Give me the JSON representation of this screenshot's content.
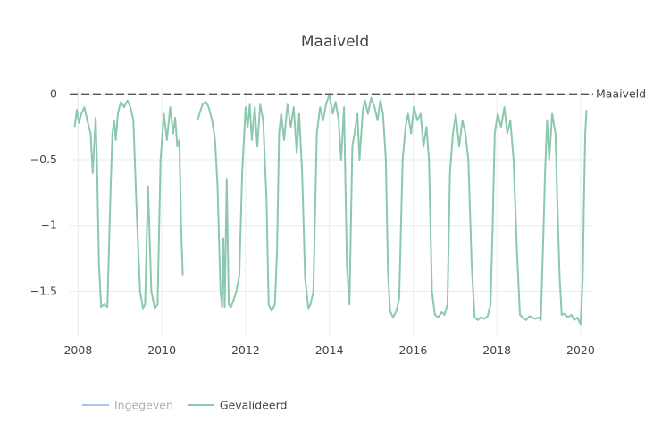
{
  "chart_data": {
    "type": "line",
    "title": "Maaiveld",
    "xlabel": "",
    "ylabel": "",
    "xlim": [
      2007.8,
      2020.3
    ],
    "ylim": [
      -1.85,
      0.05
    ],
    "x_ticks": [
      "2008",
      "2010",
      "2012",
      "2014",
      "2016",
      "2018",
      "2020"
    ],
    "y_ticks": [
      {
        "value": 0,
        "label": "0"
      },
      {
        "value": -0.5,
        "label": "−0.5"
      },
      {
        "value": -1,
        "label": "−1"
      },
      {
        "value": -1.5,
        "label": "−1.5"
      }
    ],
    "grid": true,
    "legend_position": "bottom-left",
    "reference_line": {
      "name": "Maaiveld",
      "y": 0,
      "color": "#555555",
      "dash": true
    },
    "series": [
      {
        "name": "Ingegeven",
        "color": "#a9c8f0",
        "legend_dimmed": true,
        "x": [],
        "y": []
      },
      {
        "name": "Gevalideerd",
        "color": "#8cc8ad",
        "segments": [
          {
            "x": [
              2007.92,
              2007.97,
              2008.02,
              2008.08,
              2008.15,
              2008.22,
              2008.3,
              2008.35,
              2008.42,
              2008.45,
              2008.5,
              2008.55,
              2008.62,
              2008.7,
              2008.78,
              2008.82,
              2008.86,
              2008.9,
              2008.95,
              2009.02,
              2009.1,
              2009.18,
              2009.25,
              2009.32,
              2009.4,
              2009.48,
              2009.55,
              2009.6,
              2009.67,
              2009.75,
              2009.83,
              2009.9,
              2009.97,
              2010.05,
              2010.12,
              2010.2,
              2010.27,
              2010.32,
              2010.37,
              2010.42,
              2010.46,
              2010.5
            ],
            "y": [
              -0.25,
              -0.12,
              -0.22,
              -0.15,
              -0.1,
              -0.2,
              -0.3,
              -0.6,
              -0.18,
              -0.5,
              -1.3,
              -1.62,
              -1.6,
              -1.62,
              -0.7,
              -0.3,
              -0.2,
              -0.35,
              -0.15,
              -0.06,
              -0.1,
              -0.05,
              -0.1,
              -0.2,
              -0.9,
              -1.5,
              -1.63,
              -1.6,
              -0.7,
              -1.5,
              -1.63,
              -1.6,
              -0.5,
              -0.15,
              -0.35,
              -0.1,
              -0.3,
              -0.18,
              -0.4,
              -0.35,
              -1.0,
              -1.38
            ]
          },
          {
            "x": [
              2010.85,
              2010.9,
              2010.97,
              2011.05,
              2011.12,
              2011.2,
              2011.27,
              2011.33,
              2011.4,
              2011.44,
              2011.47,
              2011.5,
              2011.55,
              2011.6,
              2011.65,
              2011.7,
              2011.78,
              2011.85,
              2011.92,
              2012.0,
              2012.05,
              2012.1,
              2012.15,
              2012.22,
              2012.28,
              2012.35,
              2012.42,
              2012.5,
              2012.55,
              2012.62,
              2012.7,
              2012.75,
              2012.8,
              2012.85,
              2012.92,
              2013.0,
              2013.08,
              2013.15,
              2013.22,
              2013.28,
              2013.35,
              2013.42,
              2013.5,
              2013.55,
              2013.62,
              2013.7,
              2013.78,
              2013.85,
              2013.92,
              2014.0,
              2014.08,
              2014.15,
              2014.22,
              2014.28,
              2014.35,
              2014.42,
              2014.48,
              2014.55,
              2014.6,
              2014.67,
              2014.72,
              2014.8,
              2014.85,
              2014.92,
              2015.0,
              2015.08,
              2015.15,
              2015.22,
              2015.28,
              2015.35,
              2015.4,
              2015.45,
              2015.52,
              2015.6,
              2015.67,
              2015.75,
              2015.82,
              2015.88,
              2015.95,
              2016.02,
              2016.1,
              2016.18,
              2016.25,
              2016.32,
              2016.38,
              2016.45,
              2016.52,
              2016.6,
              2016.68,
              2016.75,
              2016.82,
              2016.88,
              2016.95,
              2017.02,
              2017.1,
              2017.18,
              2017.25,
              2017.32,
              2017.4,
              2017.47,
              2017.55,
              2017.62,
              2017.7,
              2017.78,
              2017.85,
              2017.9,
              2017.95,
              2018.02,
              2018.1,
              2018.18,
              2018.25,
              2018.32,
              2018.4,
              2018.48,
              2018.55,
              2018.62,
              2018.7,
              2018.78,
              2018.85,
              2018.92,
              2019.0,
              2019.05,
              2019.1,
              2019.15,
              2019.2,
              2019.25,
              2019.32,
              2019.4,
              2019.45,
              2019.5,
              2019.55,
              2019.62,
              2019.7,
              2019.78,
              2019.85,
              2019.92,
              2020.0,
              2020.05,
              2020.08,
              2020.11,
              2020.14
            ],
            "y": [
              -0.2,
              -0.15,
              -0.08,
              -0.06,
              -0.1,
              -0.2,
              -0.35,
              -0.7,
              -1.5,
              -1.62,
              -1.1,
              -1.62,
              -0.65,
              -1.6,
              -1.62,
              -1.58,
              -1.5,
              -1.38,
              -0.6,
              -0.1,
              -0.25,
              -0.08,
              -0.35,
              -0.1,
              -0.4,
              -0.08,
              -0.2,
              -0.8,
              -1.6,
              -1.65,
              -1.6,
              -1.2,
              -0.3,
              -0.15,
              -0.35,
              -0.08,
              -0.25,
              -0.1,
              -0.45,
              -0.15,
              -0.6,
              -1.4,
              -1.63,
              -1.6,
              -1.5,
              -0.3,
              -0.1,
              -0.2,
              -0.08,
              0.0,
              -0.15,
              -0.06,
              -0.2,
              -0.5,
              -0.1,
              -1.3,
              -1.6,
              -0.4,
              -0.3,
              -0.15,
              -0.5,
              -0.12,
              -0.05,
              -0.15,
              -0.03,
              -0.1,
              -0.2,
              -0.05,
              -0.15,
              -0.5,
              -1.35,
              -1.65,
              -1.7,
              -1.65,
              -1.55,
              -0.5,
              -0.25,
              -0.15,
              -0.3,
              -0.1,
              -0.2,
              -0.15,
              -0.4,
              -0.25,
              -0.5,
              -1.5,
              -1.68,
              -1.7,
              -1.66,
              -1.68,
              -1.6,
              -0.6,
              -0.3,
              -0.15,
              -0.4,
              -0.2,
              -0.3,
              -0.5,
              -1.3,
              -1.7,
              -1.72,
              -1.7,
              -1.71,
              -1.69,
              -1.6,
              -1.0,
              -0.3,
              -0.15,
              -0.25,
              -0.1,
              -0.3,
              -0.2,
              -0.5,
              -1.2,
              -1.68,
              -1.7,
              -1.72,
              -1.69,
              -1.7,
              -1.71,
              -1.7,
              -1.72,
              -1.2,
              -0.6,
              -0.2,
              -0.5,
              -0.15,
              -0.3,
              -0.9,
              -1.4,
              -1.68,
              -1.67,
              -1.7,
              -1.68,
              -1.72,
              -1.7,
              -1.75,
              -1.4,
              -0.8,
              -0.3,
              -0.12
            ]
          }
        ]
      }
    ]
  }
}
